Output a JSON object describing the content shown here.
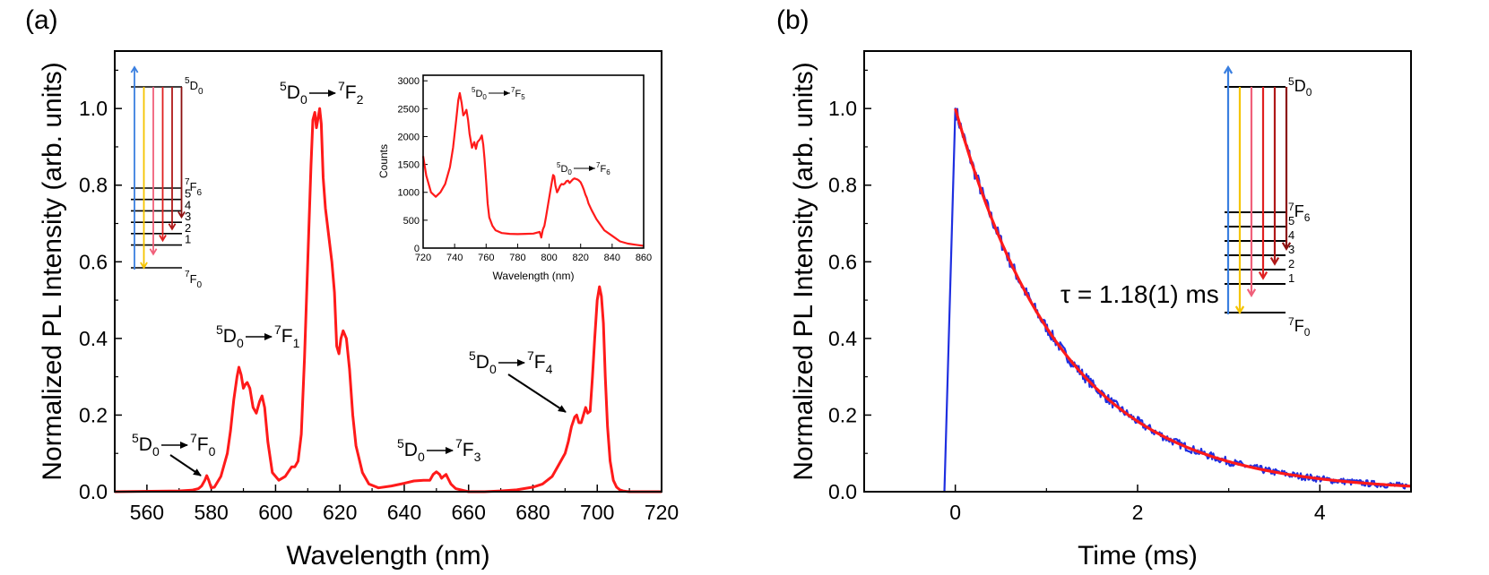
{
  "colors": {
    "spectrum": "#ff1a1a",
    "decay": "#1f2fe0",
    "fit": "#ff1a1a",
    "arrow_blue": "#3a7fe0",
    "arrow_yellow": "#f5c400",
    "arrow_pink": "#f0607a",
    "arrow_red": "#e02020",
    "arrow_darkred": "#b01818",
    "arrow_maroon": "#8c1010"
  },
  "chart_data": [
    {
      "panel": "(a)",
      "type": "line",
      "xlabel": "Wavelength (nm)",
      "ylabel": "Normalized PL Intensity (arb. units)",
      "xlim": [
        550,
        720
      ],
      "ylim": [
        0,
        1.15
      ],
      "xticks": [
        560,
        580,
        600,
        620,
        640,
        660,
        680,
        700,
        720
      ],
      "yticks": [
        0.0,
        0.2,
        0.4,
        0.6,
        0.8,
        1.0
      ],
      "ytick_labels": [
        "0.0",
        "0.2",
        "0.4",
        "0.6",
        "0.8",
        "1.0"
      ],
      "series": [
        {
          "name": "PL spectrum",
          "x": [
            550,
            570,
            574,
            576,
            577,
            578,
            578.6,
            579.2,
            580,
            581,
            583,
            585,
            586,
            587,
            588,
            588.6,
            589.3,
            590,
            590.6,
            591.2,
            592,
            593,
            594,
            595,
            595.8,
            596.6,
            597.6,
            599,
            601,
            603,
            605,
            606,
            607,
            608,
            609,
            610,
            611,
            611.6,
            612.2,
            612.7,
            613.2,
            613.7,
            614.2,
            614.8,
            615.5,
            616.5,
            617.5,
            618.3,
            619,
            619.7,
            620.3,
            621,
            622,
            623,
            624,
            625,
            627,
            629,
            632,
            636,
            640,
            643,
            646,
            648,
            649,
            650,
            651,
            651.6,
            652.2,
            653,
            653.6,
            654.5,
            656,
            660,
            665,
            670,
            675,
            680,
            683,
            686,
            688,
            690,
            691,
            692,
            693,
            693.6,
            694.3,
            695,
            695.7,
            696.4,
            697,
            697.8,
            698.5,
            699.2,
            700,
            700.7,
            701.3,
            701.9,
            702.5,
            703.2,
            704,
            705,
            706,
            707,
            708,
            709,
            710,
            712,
            715,
            720
          ],
          "y": [
            0.0,
            0.002,
            0.004,
            0.008,
            0.015,
            0.03,
            0.042,
            0.03,
            0.01,
            0.012,
            0.04,
            0.1,
            0.16,
            0.24,
            0.3,
            0.325,
            0.305,
            0.27,
            0.28,
            0.285,
            0.27,
            0.22,
            0.205,
            0.235,
            0.25,
            0.22,
            0.13,
            0.05,
            0.03,
            0.04,
            0.065,
            0.065,
            0.08,
            0.15,
            0.35,
            0.6,
            0.85,
            0.97,
            0.99,
            0.95,
            0.975,
            1.0,
            0.96,
            0.82,
            0.74,
            0.67,
            0.6,
            0.52,
            0.38,
            0.36,
            0.4,
            0.42,
            0.4,
            0.32,
            0.2,
            0.12,
            0.05,
            0.02,
            0.01,
            0.015,
            0.022,
            0.028,
            0.03,
            0.03,
            0.045,
            0.052,
            0.045,
            0.035,
            0.04,
            0.045,
            0.035,
            0.02,
            0.008,
            0.0,
            0.0,
            0.002,
            0.005,
            0.012,
            0.02,
            0.04,
            0.07,
            0.1,
            0.13,
            0.17,
            0.195,
            0.2,
            0.18,
            0.18,
            0.2,
            0.22,
            0.205,
            0.21,
            0.3,
            0.4,
            0.5,
            0.535,
            0.51,
            0.44,
            0.3,
            0.17,
            0.08,
            0.03,
            0.012,
            0.005,
            0.002,
            0.001,
            0.0,
            0.0,
            0.0,
            0.0
          ]
        }
      ],
      "annotations": [
        {
          "base": "D",
          "sup": "5",
          "sub": "0",
          "target_sup": "7",
          "target": "F",
          "target_sub": "2"
        },
        {
          "base": "D",
          "sup": "5",
          "sub": "0",
          "target_sup": "7",
          "target": "F",
          "target_sub": "1"
        },
        {
          "base": "D",
          "sup": "5",
          "sub": "0",
          "target_sup": "7",
          "target": "F",
          "target_sub": "0"
        },
        {
          "base": "D",
          "sup": "5",
          "sub": "0",
          "target_sup": "7",
          "target": "F",
          "target_sub": "3"
        },
        {
          "base": "D",
          "sup": "5",
          "sub": "0",
          "target_sup": "7",
          "target": "F",
          "target_sub": "4"
        }
      ],
      "inset": {
        "type": "line",
        "xlabel": "Wavelength (nm)",
        "ylabel": "Counts",
        "xlim": [
          720,
          860
        ],
        "ylim": [
          0,
          3100
        ],
        "xticks": [
          720,
          740,
          760,
          780,
          800,
          820,
          840,
          860
        ],
        "yticks": [
          0,
          500,
          1000,
          1500,
          2000,
          2500,
          3000
        ],
        "x": [
          720,
          722,
          725,
          728,
          731,
          734,
          737,
          739,
          741,
          742.3,
          743.3,
          744.5,
          745.5,
          746.5,
          747.5,
          748.5,
          749.5,
          751,
          752.5,
          753.5,
          754.5,
          756,
          757.3,
          758.2,
          759,
          760,
          761,
          762,
          764,
          766,
          770,
          775,
          780,
          785,
          790,
          794,
          795,
          796,
          797,
          798,
          800,
          801.5,
          802.5,
          803.2,
          804,
          805,
          806,
          807,
          808,
          809,
          810,
          811,
          812,
          813,
          814,
          815,
          816,
          817,
          818,
          819,
          820,
          821,
          822,
          823,
          824,
          825,
          827,
          830,
          835,
          840,
          845,
          850,
          855,
          860
        ],
        "y": [
          1650,
          1300,
          1000,
          920,
          1000,
          1150,
          1450,
          1800,
          2300,
          2650,
          2780,
          2600,
          2380,
          2420,
          2480,
          2300,
          2050,
          1800,
          1900,
          1780,
          1900,
          1950,
          2020,
          1850,
          1600,
          1200,
          800,
          550,
          400,
          320,
          270,
          255,
          250,
          255,
          260,
          290,
          190,
          330,
          400,
          560,
          900,
          1150,
          1310,
          1290,
          1120,
          1000,
          1050,
          1120,
          1150,
          1140,
          1160,
          1200,
          1210,
          1170,
          1200,
          1230,
          1250,
          1240,
          1230,
          1210,
          1180,
          1120,
          1050,
          960,
          900,
          800,
          680,
          520,
          320,
          220,
          120,
          80,
          60,
          40
        ]
      },
      "energy_levels": {
        "labels": [
          "5D0",
          "7F6",
          "5",
          "4",
          "3",
          "2",
          "1",
          "7F0"
        ]
      }
    },
    {
      "panel": "(b)",
      "type": "line",
      "xlabel": "Time (ms)",
      "ylabel": "Normalized PL Intensity (arb. units)",
      "xlim": [
        -1,
        5
      ],
      "ylim": [
        0,
        1.15
      ],
      "xticks": [
        0,
        2,
        4
      ],
      "yticks": [
        0.0,
        0.2,
        0.4,
        0.6,
        0.8,
        1.0
      ],
      "ytick_labels": [
        "0.0",
        "0.2",
        "0.4",
        "0.6",
        "0.8",
        "1.0"
      ],
      "annotation": "τ = 1.18(1) ms",
      "lifetime_ms": 1.18,
      "series": [
        {
          "name": "decay",
          "model": "measured",
          "rise_start": -0.12,
          "rise_end": 0.0,
          "peak": 1.0
        },
        {
          "name": "fit",
          "model": "exp(-t/tau)",
          "t_start": 0.0,
          "t_end": 5.0,
          "tau": 1.18
        }
      ],
      "energy_levels": {
        "labels": [
          "5D0",
          "7F6",
          "5",
          "4",
          "3",
          "2",
          "1",
          "7F0"
        ]
      }
    }
  ],
  "labels": {
    "panel_a": "(a)",
    "panel_b": "(b)",
    "a_xlabel": "Wavelength (nm)",
    "a_ylabel": "Normalized PL Intensity (arb. units)",
    "b_xlabel": "Time (ms)",
    "b_ylabel": "Normalized PL Intensity (arb. units)",
    "inset_xlabel": "Wavelength (nm)",
    "inset_ylabel": "Counts",
    "tau": "τ = 1.18(1) ms"
  }
}
